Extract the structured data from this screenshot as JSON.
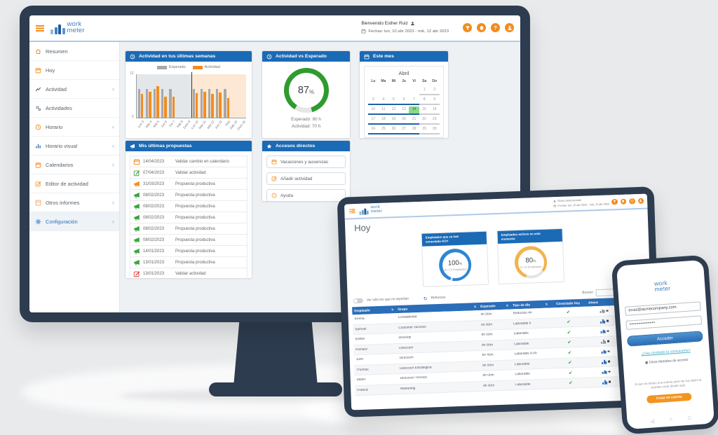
{
  "brand": {
    "word1": "work",
    "word2": "meter"
  },
  "desktop": {
    "header": {
      "welcome": "Bienvenido Esther Ruiz",
      "dates": "Fechas: lun, 10 abr 2023 - mié, 12 abr 2023"
    },
    "sidebar": {
      "items": [
        {
          "label": "Resumen",
          "icon": "home",
          "icon_color": "#f28c1e",
          "chevron": false,
          "active": false
        },
        {
          "label": "Hoy",
          "icon": "calendar",
          "icon_color": "#f28c1e",
          "chevron": false,
          "active": false
        },
        {
          "label": "Actividad",
          "icon": "chartline",
          "icon_color": "#41586e",
          "chevron": true,
          "active": false
        },
        {
          "label": "Actividades",
          "icon": "gears",
          "icon_color": "#5b7185",
          "chevron": false,
          "active": false
        },
        {
          "label": "Horario",
          "icon": "clock",
          "icon_color": "#f28c1e",
          "chevron": true,
          "active": false
        },
        {
          "label": "Horario visual",
          "icon": "barchart",
          "icon_color": "#2a6db8",
          "chevron": true,
          "active": false
        },
        {
          "label": "Calendarios",
          "icon": "calendar",
          "icon_color": "#f28c1e",
          "chevron": true,
          "active": false
        },
        {
          "label": "Editor de actividad",
          "icon": "edit",
          "icon_color": "#f28c1e",
          "chevron": false,
          "active": false
        },
        {
          "label": "Otros informes",
          "icon": "box",
          "icon_color": "#f0a05a",
          "chevron": true,
          "active": false
        },
        {
          "label": "Configuración",
          "icon": "gear",
          "icon_color": "#2a6db8",
          "chevron": true,
          "active": true
        }
      ]
    },
    "panels": {
      "weeks": {
        "title": "Actividad en tus últimas semanas",
        "chart_data": {
          "type": "bar",
          "categories": [
            "Lun 3",
            "Mar 4",
            "Mié 5",
            "Jue 6",
            "Vie 7",
            "Sáb 8",
            "Dom 9",
            "Lun 10",
            "Mar 11",
            "Mié 12",
            "Jue 13",
            "Hoy",
            "Sáb 15",
            "Dom 16"
          ],
          "series": [
            {
              "name": "Esperado",
              "color": "#a8a8a8",
              "values": [
                8,
                8,
                8,
                8,
                8,
                0,
                0,
                8,
                8,
                8,
                8,
                8,
                0,
                0
              ]
            },
            {
              "name": "Actividad",
              "color": "#f28c1e",
              "values": [
                6.5,
                7.2,
                8.8,
                5.8,
                5.8,
                0,
                0,
                6.8,
                7.2,
                6.5,
                7,
                5.5,
                0,
                0
              ]
            }
          ],
          "ylim": [
            0,
            12
          ],
          "ymax_label": "12",
          "ymin_label": "0"
        }
      },
      "gauge": {
        "title": "Actividad vs Esperado",
        "percent": "87",
        "percent_sign": "%",
        "percent_value": 87,
        "color": "#2f9b2f",
        "esperado": "Esperado: 80 h",
        "actividad": "Actividad: 70 h"
      },
      "month": {
        "title": "Este mes",
        "month_name": "Abril",
        "day_headers": [
          "Lu",
          "Ma",
          "Mi",
          "Ju",
          "Vi",
          "Sa",
          "Do"
        ],
        "weeks": [
          [
            "",
            "",
            "",
            "",
            "",
            "1",
            "2"
          ],
          [
            "3",
            "4",
            "5",
            "6",
            "7",
            "8",
            "9"
          ],
          [
            "10",
            "11",
            "12",
            "13",
            "14",
            "15",
            "16"
          ],
          [
            "17",
            "18",
            "19",
            "20",
            "21",
            "22",
            "23"
          ],
          [
            "24",
            "25",
            "26",
            "27",
            "28",
            "29",
            "30"
          ]
        ],
        "highlight_day": "14"
      },
      "proposals": {
        "title": "Mis últimas propuestas",
        "rows": [
          {
            "icon": "calendar",
            "color": "#f28c1e",
            "date": "14/04/2023",
            "text": "Validar cambio en calendario"
          },
          {
            "icon": "edit",
            "color": "#3da33d",
            "date": "07/04/2023",
            "text": "Validar actividad"
          },
          {
            "icon": "megaphone",
            "color": "#f28c1e",
            "date": "31/03/2023",
            "text": "Propuesta productiva"
          },
          {
            "icon": "megaphone",
            "color": "#3da33d",
            "date": "08/02/2023",
            "text": "Propuesta productiva"
          },
          {
            "icon": "megaphone",
            "color": "#3da33d",
            "date": "08/02/2023",
            "text": "Propuesta productiva"
          },
          {
            "icon": "megaphone",
            "color": "#3da33d",
            "date": "08/02/2023",
            "text": "Propuesta productiva"
          },
          {
            "icon": "megaphone",
            "color": "#3da33d",
            "date": "08/02/2023",
            "text": "Propuesta productiva"
          },
          {
            "icon": "megaphone",
            "color": "#3da33d",
            "date": "08/02/2023",
            "text": "Propuesta productiva"
          },
          {
            "icon": "megaphone",
            "color": "#3da33d",
            "date": "14/01/2023",
            "text": "Propuesta productiva"
          },
          {
            "icon": "megaphone",
            "color": "#3da33d",
            "date": "13/01/2023",
            "text": "Propuesta productiva"
          },
          {
            "icon": "edit",
            "color": "#d43f3a",
            "date": "13/01/2023",
            "text": "Validar actividad"
          }
        ]
      },
      "shortcuts": {
        "title": "Accesos directos",
        "buttons": [
          {
            "icon": "calendar",
            "label": "Vacaciones y ausencias"
          },
          {
            "icon": "edit",
            "label": "Añadir actividad"
          },
          {
            "icon": "question",
            "label": "Ayuda"
          }
        ]
      }
    }
  },
  "tablet": {
    "header": {
      "group": "Grupo seleccionado",
      "dates": "Fechas: lun, 10 abr 2023 - mié, 12 abr 2023"
    },
    "page_title": "Hoy",
    "stats": [
      {
        "title": "Empleados que se han conectado HOY",
        "value": "100",
        "unit": "%",
        "percent": 100,
        "color": "#2e86d2",
        "label": "10 / 10 Empleados"
      },
      {
        "title": "Empleados activos en este momento",
        "value": "80",
        "unit": "%",
        "percent": 80,
        "color": "#f2b24e",
        "label": "8 / 10 Empleados"
      }
    ],
    "toolbar": {
      "toggle_label": "Ver sólo los que no reportan",
      "refresh_label": "Refrescar",
      "search_label": "Buscar:"
    },
    "table": {
      "headers": [
        {
          "label": "Empleado",
          "sort": true
        },
        {
          "label": "Grupo",
          "sort": true
        },
        {
          "label": "Esperado",
          "sort": true
        },
        {
          "label": "Tipo de día",
          "sort": true
        },
        {
          "label": "Conectado hoy",
          "sort": false
        },
        {
          "label": "Ahora",
          "sort": true
        },
        {
          "label": "Com",
          "sort": false
        }
      ],
      "rows": [
        {
          "name": "Emma",
          "group": "Contabilidad",
          "expected": "4h 00m",
          "day_type": "Reducido 4h",
          "connected": true,
          "now": "idle",
          "mail": "gray"
        },
        {
          "name": "Samuel",
          "group": "Customer success",
          "expected": "6h 00m",
          "day_type": "Laborable 6",
          "connected": true,
          "now": "active",
          "mail": "blue"
        },
        {
          "name": "Esther",
          "group": "Develop",
          "expected": "8h 00m",
          "day_type": "Laborable",
          "connected": true,
          "now": "active",
          "mail": "gray"
        },
        {
          "name": "Richard",
          "group": "Dirección",
          "expected": "8h 00m",
          "day_type": "Laborable",
          "connected": true,
          "now": "idle",
          "mail": "gray"
        },
        {
          "name": "John",
          "group": "Dirección",
          "expected": "8h 45m",
          "day_type": "Laborable 8.45",
          "connected": true,
          "now": "active",
          "mail": "blue"
        },
        {
          "name": "Thomas",
          "group": "Dirección Estratégica",
          "expected": "8h 00m",
          "day_type": "Laborable",
          "connected": true,
          "now": "active",
          "mail": "blue"
        },
        {
          "name": "Albert",
          "group": "Dirección Técnica",
          "expected": "8h 00m",
          "day_type": "Laborable",
          "connected": true,
          "now": "active",
          "mail": "blue"
        },
        {
          "name": "Francis",
          "group": "Marketing",
          "expected": "8h 00m",
          "day_type": "Laborable",
          "connected": true,
          "now": "active",
          "mail": "gray"
        }
      ]
    }
  },
  "phone": {
    "login": {
      "email": "eruiz@acmecompany.com",
      "password": "••••••••••••••",
      "submit": "Acceder",
      "forgot": "¿Has olvidado la contraseña?",
      "other_methods": "Otros Metodos de acceso",
      "signup_text": "Si aun no tienes una cuenta para ver tus datos la puedes crear desde aquí",
      "signup_button": "Crear mi cuenta"
    }
  }
}
